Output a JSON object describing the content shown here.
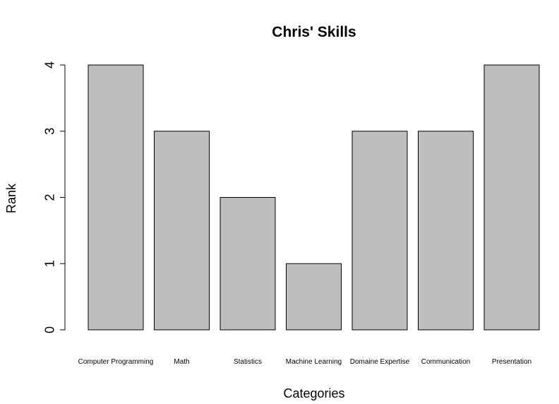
{
  "chart_data": {
    "type": "bar",
    "title": "Chris' Skills",
    "xlabel": "Categories",
    "ylabel": "Rank",
    "categories": [
      "Computer Programming",
      "Math",
      "Statistics",
      "Machine Learning",
      "Domaine Expertise",
      "Communication",
      "Presentation"
    ],
    "values": [
      4,
      3,
      2,
      1,
      3,
      3,
      4
    ],
    "ylim": [
      0,
      4
    ],
    "yticks": [
      0,
      1,
      2,
      3,
      4
    ],
    "yticklabels": [
      "0",
      "1",
      "2",
      "3",
      "4"
    ],
    "bar_color": "#bebebe",
    "bar_border_color": "#000000",
    "grid": false,
    "legend": "none"
  }
}
